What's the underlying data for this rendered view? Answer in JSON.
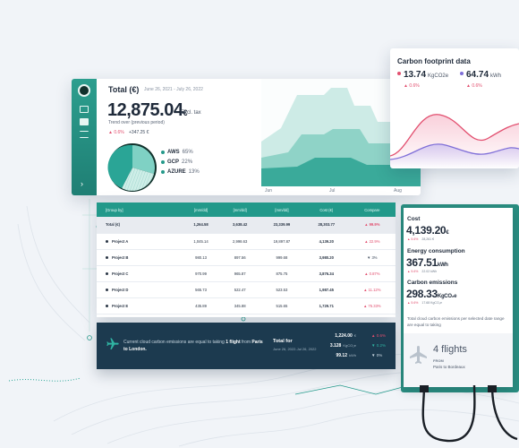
{
  "dashboard": {
    "title": "Total (€)",
    "date_range": "June 26, 2021 - July 26, 2022",
    "total_amount": "12,875.04",
    "currency": "€",
    "tax_note": "Excl. tax",
    "trend_label": "Trend over (previous period)",
    "trend_pct": "▲ 0.6%",
    "trend_abs": "+347.25 €",
    "providers": [
      {
        "name": "AWS",
        "pct": "65%"
      },
      {
        "name": "GCP",
        "pct": "22%"
      },
      {
        "name": "AZURE",
        "pct": "13%"
      }
    ],
    "x_ticks": [
      "Jun",
      "Jul",
      "Aug"
    ],
    "colors": {
      "accent": "#22998a",
      "negative": "#e24f6f",
      "dark": "#1c3a4f"
    }
  },
  "carbon": {
    "title": "Carbon footprint data",
    "co2_value": "13.74",
    "co2_unit": "KgCO2e",
    "co2_delta": "▲ 0.6%",
    "energy_value": "64.74",
    "energy_unit": "kWh",
    "energy_delta": "▲ 0.6%"
  },
  "table": {
    "headers": [
      "[Group by]",
      "[mm/dd]",
      "[mm/dd]",
      "[mm/dd]",
      "Cost (€)",
      "Compare"
    ],
    "rows": [
      {
        "name": "Total (€)",
        "c1": "1,264.58",
        "c2": "3,638.42",
        "c3": "23,339.99",
        "cost": "28,303.77",
        "compare": "▲ 99.9%"
      },
      {
        "name": "Project A",
        "c1": "1,045.14",
        "c2": "2,998.63",
        "c3": "19,897.87",
        "cost": "4,139.20",
        "compare": "▲ 22.9%"
      },
      {
        "name": "Project B",
        "c1": "980.13",
        "c2": "897.56",
        "c3": "999.68",
        "cost": "3,980.20",
        "compare": "▼ 3%"
      },
      {
        "name": "Project C",
        "c1": "970.99",
        "c2": "965.87",
        "c3": "875.75",
        "cost": "3,876.34",
        "compare": "▲ 0.87%"
      },
      {
        "name": "Project D",
        "c1": "565.73",
        "c2": "522.47",
        "c3": "523.53",
        "cost": "1,987.45",
        "compare": "▲ 11.12%"
      },
      {
        "name": "Project E",
        "c1": "435.89",
        "c2": "345.88",
        "c3": "515.65",
        "cost": "1,729.71",
        "compare": "▲ 75.33%"
      }
    ]
  },
  "bottom_bar": {
    "text_before": "Current cloud carbon emissions are equal to taking ",
    "text_bold_1": "1 flight",
    "text_middle": " from ",
    "text_bold_2": "Paris to London.",
    "total_label": "Total for",
    "total_range": "June 26, 2022-Jul 26, 2022",
    "stats": [
      {
        "value": "1,224.00",
        "unit": "€",
        "delta": "▲ 0.6%"
      },
      {
        "value": "3.128",
        "unit": "KgCO₂e",
        "delta": "▼ 0.2%"
      },
      {
        "value": "99.12",
        "unit": "kWh",
        "delta": "▼ 0%"
      }
    ]
  },
  "summary": {
    "cost_label": "Cost",
    "cost_value": "4,139.20",
    "cost_unit": "€",
    "cost_sub_delta": "▲ 5.6%",
    "cost_sub_prev": "28,261 €",
    "energy_label": "Energy consumption",
    "energy_value": "367.51",
    "energy_unit": "kWh",
    "energy_sub_delta": "▲ 5.6%",
    "energy_sub_prev": "22.02 kWh",
    "emissions_label": "Carbon emissions",
    "emissions_value": "298.33",
    "emissions_unit": "KgCO₂e",
    "emissions_sub_delta": "▲ 5.6%",
    "emissions_sub_prev": "17.68 KgCO₂e",
    "note": "Total cloud carbon emissions per selected date range are equal to taking",
    "flights": "4 flights",
    "from_label": "FROM",
    "route": "Paris to Bordeaux"
  }
}
